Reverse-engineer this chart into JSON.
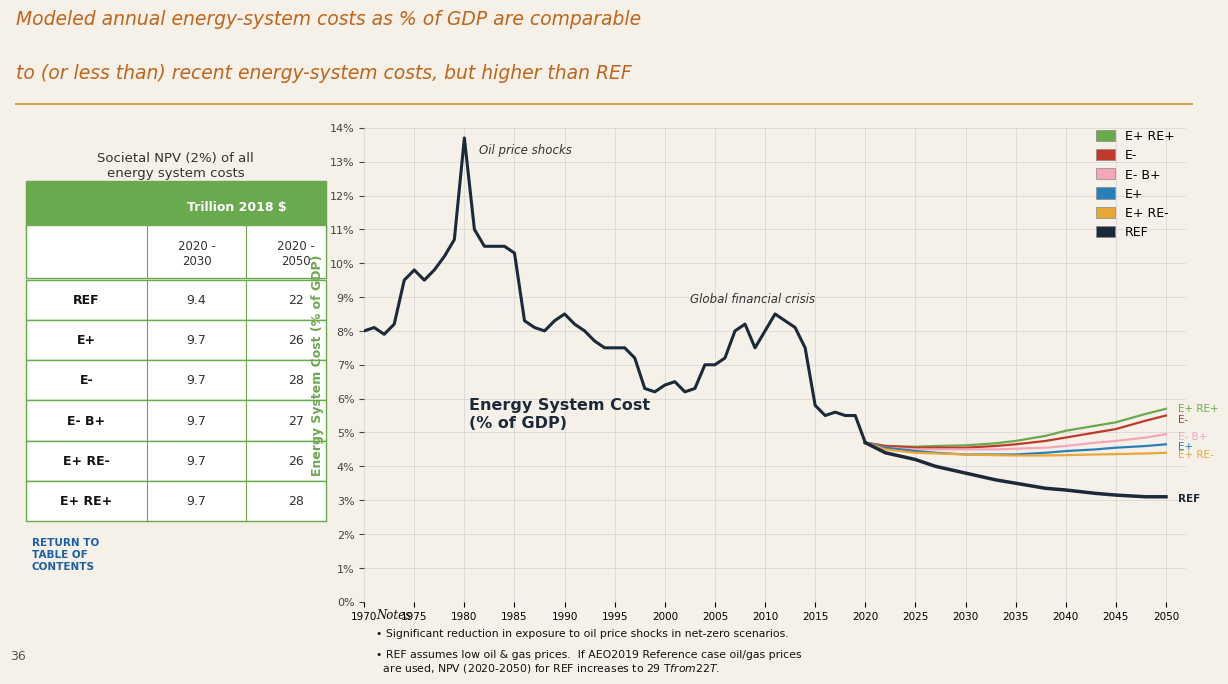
{
  "title_line1": "Modeled annual energy-system costs as % of GDP are comparable",
  "title_line2": "to (or less than) recent energy-system costs, but higher than REF",
  "title_color": "#c0651a",
  "background_color": "#f5f0e8",
  "table_title": "Societal NPV (2%) of all\nenergy system costs",
  "table_header": "Trillion 2018 $",
  "table_rows": [
    [
      "REF",
      "9.4",
      "22"
    ],
    [
      "E+",
      "9.7",
      "26"
    ],
    [
      "E-",
      "9.7",
      "28"
    ],
    [
      "E- B+",
      "9.7",
      "27"
    ],
    [
      "E+ RE-",
      "9.7",
      "26"
    ],
    [
      "E+ RE+",
      "9.7",
      "28"
    ]
  ],
  "table_header_bg": "#6aaa4e",
  "table_header_fg": "#ffffff",
  "table_border_color": "#6aaa4e",
  "ylabel": "Energy System Cost (% of GDP)",
  "ylabel_color": "#6aaa4e",
  "xlim": [
    1970,
    2052
  ],
  "ylim": [
    0,
    14
  ],
  "yticks": [
    0,
    1,
    2,
    3,
    4,
    5,
    6,
    7,
    8,
    9,
    10,
    11,
    12,
    13,
    14
  ],
  "xticks": [
    1970,
    1975,
    1980,
    1985,
    1990,
    1995,
    2000,
    2005,
    2010,
    2015,
    2020,
    2025,
    2030,
    2035,
    2040,
    2045,
    2050
  ],
  "annotation_oil": "Oil price shocks",
  "annotation_gfc": "Global financial crisis",
  "annotation_esc_line1": "Energy System Cost",
  "annotation_esc_line2": "(% of GDP)",
  "notes_title": "Notes",
  "note1": "• Significant reduction in exposure to oil price shocks in net-zero scenarios.",
  "note2": "• REF assumes low oil & gas prices.  If AEO2019 Reference case oil/gas prices\n  are used, NPV (2020-2050) for REF increases to 29 T$ from 22 T$.",
  "legend_entries": [
    "E+ RE+",
    "E-",
    "E- B+",
    "E+",
    "E+ RE-",
    "REF"
  ],
  "legend_colors": [
    "#6aaa4e",
    "#c0392b",
    "#f4a7b9",
    "#2980b9",
    "#e8a838",
    "#1a2a3a"
  ],
  "series_colors": {
    "REF": "#1a2a3a",
    "E+": "#2980b9",
    "E-": "#c0392b",
    "E-B+": "#f4a7b9",
    "E+RE-": "#e8a838",
    "E+RE+": "#6aaa4e"
  },
  "historical_years": [
    1970,
    1971,
    1972,
    1973,
    1974,
    1975,
    1976,
    1977,
    1978,
    1979,
    1980,
    1981,
    1982,
    1983,
    1984,
    1985,
    1986,
    1987,
    1988,
    1989,
    1990,
    1991,
    1992,
    1993,
    1994,
    1995,
    1996,
    1997,
    1998,
    1999,
    2000,
    2001,
    2002,
    2003,
    2004,
    2005,
    2006,
    2007,
    2008,
    2009,
    2010,
    2011,
    2012,
    2013,
    2014,
    2015,
    2016,
    2017,
    2018,
    2019,
    2020
  ],
  "historical_values": [
    8.0,
    8.1,
    7.9,
    8.2,
    9.5,
    9.8,
    9.5,
    9.8,
    10.2,
    10.7,
    13.7,
    11.0,
    10.5,
    10.5,
    10.5,
    10.3,
    8.3,
    8.1,
    8.0,
    8.3,
    8.5,
    8.2,
    8.0,
    7.7,
    7.5,
    7.5,
    7.5,
    7.2,
    6.3,
    6.2,
    6.4,
    6.5,
    6.2,
    6.3,
    7.0,
    7.0,
    7.2,
    8.0,
    8.2,
    7.5,
    8.0,
    8.5,
    8.3,
    8.1,
    7.5,
    5.8,
    5.5,
    5.6,
    5.5,
    5.5,
    4.7
  ],
  "future_years": [
    2020,
    2022,
    2025,
    2027,
    2030,
    2033,
    2035,
    2038,
    2040,
    2043,
    2045,
    2048,
    2050
  ],
  "future_REF": [
    4.7,
    4.4,
    4.2,
    4.0,
    3.8,
    3.6,
    3.5,
    3.35,
    3.3,
    3.2,
    3.15,
    3.1,
    3.1
  ],
  "future_Ep": [
    4.7,
    4.55,
    4.45,
    4.4,
    4.35,
    4.35,
    4.35,
    4.4,
    4.45,
    4.5,
    4.55,
    4.6,
    4.65
  ],
  "future_Em": [
    4.7,
    4.6,
    4.55,
    4.55,
    4.55,
    4.6,
    4.65,
    4.75,
    4.85,
    5.0,
    5.1,
    5.35,
    5.5
  ],
  "future_EmBp": [
    4.7,
    4.55,
    4.5,
    4.5,
    4.5,
    4.5,
    4.52,
    4.55,
    4.6,
    4.7,
    4.75,
    4.85,
    4.95
  ],
  "future_EpREm": [
    4.7,
    4.5,
    4.4,
    4.38,
    4.35,
    4.33,
    4.32,
    4.32,
    4.33,
    4.35,
    4.36,
    4.38,
    4.4
  ],
  "future_EpREp": [
    4.7,
    4.6,
    4.58,
    4.6,
    4.62,
    4.68,
    4.75,
    4.9,
    5.05,
    5.2,
    5.3,
    5.55,
    5.7
  ]
}
